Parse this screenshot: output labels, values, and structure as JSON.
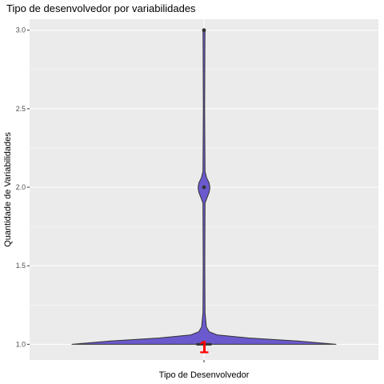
{
  "chart_data": {
    "type": "violin",
    "title": "Tipo de desenvolvedor por variabilidades",
    "xlabel": "Tipo de Desenvolvedor",
    "ylabel": "Quantidade de Variabilidades",
    "y_ticks": [
      "1.0",
      "1.5",
      "2.0",
      "2.5",
      "3.0"
    ],
    "y_tick_values": [
      1.0,
      1.5,
      2.0,
      2.5,
      3.0
    ],
    "ylim": [
      0.9,
      3.07
    ],
    "x_categories": [
      ""
    ],
    "violin_density": [
      {
        "y": 1.0,
        "w": 1.0
      },
      {
        "y": 1.02,
        "w": 0.72
      },
      {
        "y": 1.04,
        "w": 0.34
      },
      {
        "y": 1.06,
        "w": 0.1
      },
      {
        "y": 1.08,
        "w": 0.04
      },
      {
        "y": 1.11,
        "w": 0.018
      },
      {
        "y": 1.2,
        "w": 0.008
      },
      {
        "y": 1.5,
        "w": 0.006
      },
      {
        "y": 1.9,
        "w": 0.008
      },
      {
        "y": 1.93,
        "w": 0.022
      },
      {
        "y": 1.97,
        "w": 0.04
      },
      {
        "y": 2.0,
        "w": 0.045
      },
      {
        "y": 2.03,
        "w": 0.038
      },
      {
        "y": 2.06,
        "w": 0.02
      },
      {
        "y": 2.1,
        "w": 0.008
      },
      {
        "y": 2.5,
        "w": 0.005
      },
      {
        "y": 2.97,
        "w": 0.007
      },
      {
        "y": 3.0,
        "w": 0.008
      }
    ],
    "boxplot": {
      "min": 1.0,
      "q1": 1.0,
      "median": 1.0,
      "q3": 1.0,
      "max": 1.0
    },
    "outliers": [
      2.0,
      3.0
    ],
    "annotation": {
      "text": "1",
      "color": "#ff0000"
    },
    "colors": {
      "fill": "#6a5acd",
      "panel": "#ebebeb",
      "grid": "#ffffff",
      "outline": "#333333"
    },
    "grid": true,
    "legend": "none"
  }
}
